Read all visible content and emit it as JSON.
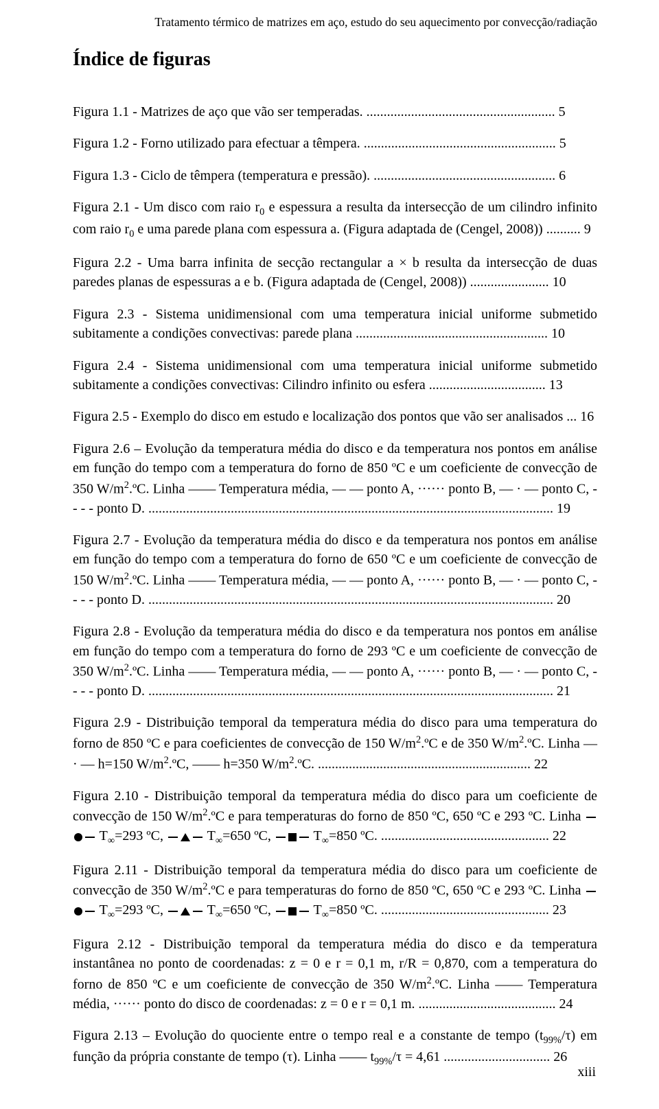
{
  "running_header": "Tratamento térmico de matrizes em aço, estudo do seu aquecimento por convecção/radiação",
  "section_title": "Índice de figuras",
  "page_number": "xiii",
  "entries": [
    {
      "text": "Figura 1.1 - Matrizes de aço que vão ser temperadas. ....................................................... 5"
    },
    {
      "text": "Figura 1.2 - Forno utilizado para efectuar a têmpera. ........................................................ 5"
    },
    {
      "text": "Figura 1.3 - Ciclo de têmpera (temperatura e pressão). ..................................................... 6"
    },
    {
      "html": "Figura 2.1 - Um disco com raio r<sub>0</sub> e espessura a resulta da intersecção de um cilindro infinito com raio r<sub>0</sub> e uma parede plana com espessura a. (Figura adaptada de (Cengel, 2008)) .......... 9"
    },
    {
      "text": "Figura 2.2 - Uma barra infinita de secção rectangular a × b resulta da intersecção de duas paredes planas de espessuras a e b. (Figura adaptada de (Cengel, 2008)) ....................... 10"
    },
    {
      "text": "Figura 2.3 - Sistema unidimensional com uma temperatura inicial uniforme submetido subitamente a condições convectivas: parede plana ........................................................ 10"
    },
    {
      "text": "Figura 2.4 - Sistema unidimensional com uma temperatura inicial uniforme submetido subitamente a condições convectivas: Cilindro infinito ou esfera .................................. 13"
    },
    {
      "text": "Figura 2.5 - Exemplo do disco em estudo e localização dos pontos que vão ser analisados ... 16"
    },
    {
      "html": "Figura 2.6 – Evolução da temperatura média do disco e da temperatura nos pontos em análise em função do tempo com a temperatura do forno de 850 ºC e um coeficiente de convecção de 350 W/m<sup>2</sup>.ºC. Linha —— Temperatura média, — — ponto A, ······ ponto B, — · — ponto C, - - - - ponto D. ...................................................................................................................... 19"
    },
    {
      "html": "Figura 2.7 - Evolução da temperatura média do disco e da temperatura nos pontos em análise em função do tempo com a temperatura do forno de 650 ºC e um coeficiente de convecção de 150 W/m<sup>2</sup>.ºC. Linha —— Temperatura média, — — ponto A, ······ ponto B, — · — ponto C, - - - - ponto D. ...................................................................................................................... 20"
    },
    {
      "html": "Figura 2.8 - Evolução da temperatura média do disco e da temperatura nos pontos em análise em função do tempo com a temperatura do forno de 293 ºC e um coeficiente de convecção de 350 W/m<sup>2</sup>.ºC. Linha —— Temperatura média, — — ponto A, ······ ponto B, — · — ponto C, - - - - ponto D. ...................................................................................................................... 21"
    },
    {
      "html": "Figura 2.9 - Distribuição temporal da temperatura média do disco para uma temperatura do forno de 850 ºC e para coeficientes de convecção de 150 W/m<sup>2</sup>.ºC e de 350 W/m<sup>2</sup>.ºC. Linha — · — h=150 W/m<sup>2</sup>.ºC, —— h=350 W/m<sup>2</sup>.ºC. .............................................................. 22"
    },
    {
      "html": "Figura 2.10 - Distribuição temporal da temperatura média do disco para um coeficiente de convecção de 150 W/m<sup>2</sup>.ºC e para temperaturas do forno de 850 ºC, 650 ºC e 293 ºC. Linha <span class='line-seg'></span><span class='marker circle'></span><span class='line-seg'></span> T<sub>∞</sub>=293 ºC, <span class='line-seg'></span><span class='marker triangle'></span><span class='line-seg'></span> T<sub>∞</sub>=650 ºC, <span class='line-seg'></span><span class='marker square'></span><span class='line-seg'></span> T<sub>∞</sub>=850 ºC. ................................................. 22"
    },
    {
      "html": "Figura 2.11 - Distribuição temporal da temperatura média do disco para um coeficiente de convecção de 350 W/m<sup>2</sup>.ºC e para temperaturas do forno de 850 ºC, 650 ºC e 293 ºC. Linha <span class='line-seg'></span><span class='marker circle'></span><span class='line-seg'></span> T<sub>∞</sub>=293 ºC, <span class='line-seg'></span><span class='marker triangle'></span><span class='line-seg'></span> T<sub>∞</sub>=650 ºC, <span class='line-seg'></span><span class='marker square'></span><span class='line-seg'></span> T<sub>∞</sub>=850 ºC. ................................................. 23"
    },
    {
      "html": "Figura 2.12 - Distribuição temporal da temperatura média do disco e da temperatura instantânea no ponto de coordenadas: z = 0 e r = 0,1 m, r/R = 0,870, com a temperatura do forno de 850 ºC e um coeficiente de convecção de 350 W/m<sup>2</sup>.ºC. Linha —— Temperatura média, ······ ponto do disco de coordenadas: z = 0 e r = 0,1 m. ........................................ 24"
    },
    {
      "html": "Figura 2.13 – Evolução do quociente entre o tempo real e a constante de tempo (t<sub>99%</sub>/τ) em função da própria constante de tempo (τ). Linha —— t<sub>99%</sub>/τ = 4,61 ............................... 26"
    }
  ]
}
